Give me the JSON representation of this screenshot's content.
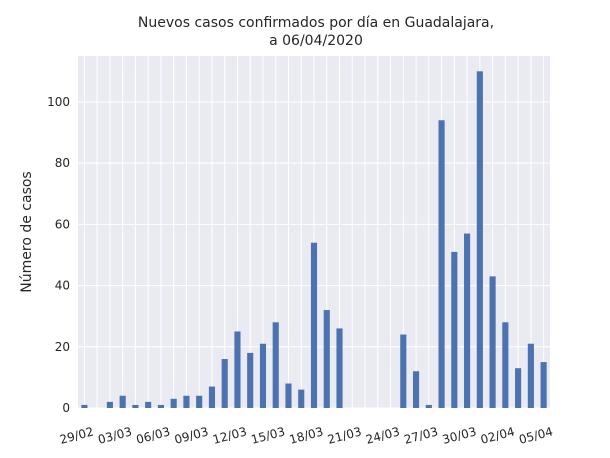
{
  "chart_data": {
    "type": "bar",
    "title_lines": [
      "Nuevos casos confirmados por día en Guadalajara,",
      "a 06/04/2020"
    ],
    "xlabel": "",
    "ylabel": "Número de casos",
    "ylim": [
      0,
      115
    ],
    "yticks": [
      0,
      20,
      40,
      60,
      80,
      100
    ],
    "grid": true,
    "color": "#4c72b0",
    "background": "#eaeaf2",
    "categories": [
      "29/02",
      "01/03",
      "02/03",
      "03/03",
      "04/03",
      "05/03",
      "06/03",
      "07/03",
      "08/03",
      "09/03",
      "10/03",
      "11/03",
      "12/03",
      "13/03",
      "14/03",
      "15/03",
      "16/03",
      "17/03",
      "18/03",
      "19/03",
      "20/03",
      "21/03",
      "22/03",
      "23/03",
      "24/03",
      "25/03",
      "26/03",
      "27/03",
      "28/03",
      "29/03",
      "30/03",
      "31/03",
      "01/04",
      "02/04",
      "03/04",
      "04/04",
      "05/04"
    ],
    "tick_labels": [
      "29/02",
      "03/03",
      "06/03",
      "09/03",
      "12/03",
      "15/03",
      "18/03",
      "21/03",
      "24/03",
      "27/03",
      "30/03",
      "02/04",
      "05/04"
    ],
    "tick_indices": [
      0,
      3,
      6,
      9,
      12,
      15,
      18,
      21,
      24,
      27,
      30,
      33,
      36
    ],
    "values": [
      1,
      0,
      2,
      4,
      1,
      2,
      1,
      3,
      4,
      4,
      7,
      16,
      25,
      18,
      21,
      28,
      8,
      6,
      54,
      32,
      26,
      0,
      0,
      0,
      0,
      24,
      12,
      1,
      94,
      51,
      57,
      110,
      43,
      28,
      13,
      21,
      15
    ]
  }
}
